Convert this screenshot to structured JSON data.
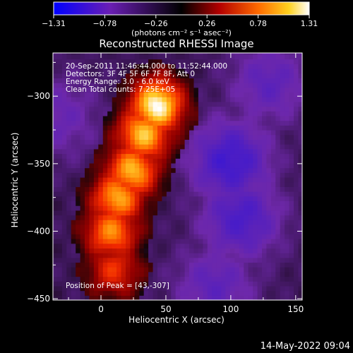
{
  "colorbar": {
    "ticks": [
      "-1.31",
      "-0.78",
      "-0.26",
      "0.26",
      "0.78",
      "1.31"
    ],
    "unit_label": "(photons cm⁻² s⁻¹ asec⁻²)"
  },
  "chart_data": {
    "type": "heatmap",
    "title": "Reconstructed RHESSI Image",
    "xlabel": "Heliocentric X (arcsec)",
    "ylabel": "Heliocentric Y (arcsec)",
    "xlim": [
      -37,
      155
    ],
    "ylim": [
      -451,
      -268
    ],
    "x_ticks": [
      0,
      50,
      100,
      150
    ],
    "y_ticks": [
      -300,
      -350,
      -400,
      -450
    ],
    "x_tick_labels": [
      "0",
      "50",
      "100",
      "150"
    ],
    "y_tick_labels": [
      "−300",
      "−350",
      "−400",
      "−450"
    ],
    "colormap": "red-temperature with blue/purple negatives",
    "value_range": [
      -1.31,
      1.31
    ],
    "peak": {
      "x": 43,
      "y": -307
    },
    "annotations": {
      "time_range": "20-Sep-2011 11:46:44.000 to 11:52:44.000",
      "detectors": "Detectors: 3F 4F 5F 6F 7F 8F, Att 0",
      "energy": "Energy Range: 3.0 - 6.0 keV",
      "clean": "Clean     Total counts: 7.25E+05",
      "peak_text": "Position of Peak = [43,-307]"
    },
    "emission_ridge": [
      {
        "x": 43,
        "y": -307,
        "v": 1.31
      },
      {
        "x": 33,
        "y": -328,
        "v": 1.05
      },
      {
        "x": 24,
        "y": -355,
        "v": 1.0
      },
      {
        "x": 13,
        "y": -375,
        "v": 0.95
      },
      {
        "x": 8,
        "y": -400,
        "v": 0.85
      },
      {
        "x": 10,
        "y": -428,
        "v": 0.55
      }
    ],
    "negative_regions": [
      {
        "x": 100,
        "y": -348,
        "v": -0.8
      },
      {
        "x": 108,
        "y": -390,
        "v": -0.7
      },
      {
        "x": 130,
        "y": -290,
        "v": -0.5
      },
      {
        "x": 88,
        "y": -440,
        "v": -0.5
      },
      {
        "x": -32,
        "y": -315,
        "v": -0.4
      }
    ]
  },
  "footer": {
    "timestamp": "14-May-2022 09:04"
  }
}
